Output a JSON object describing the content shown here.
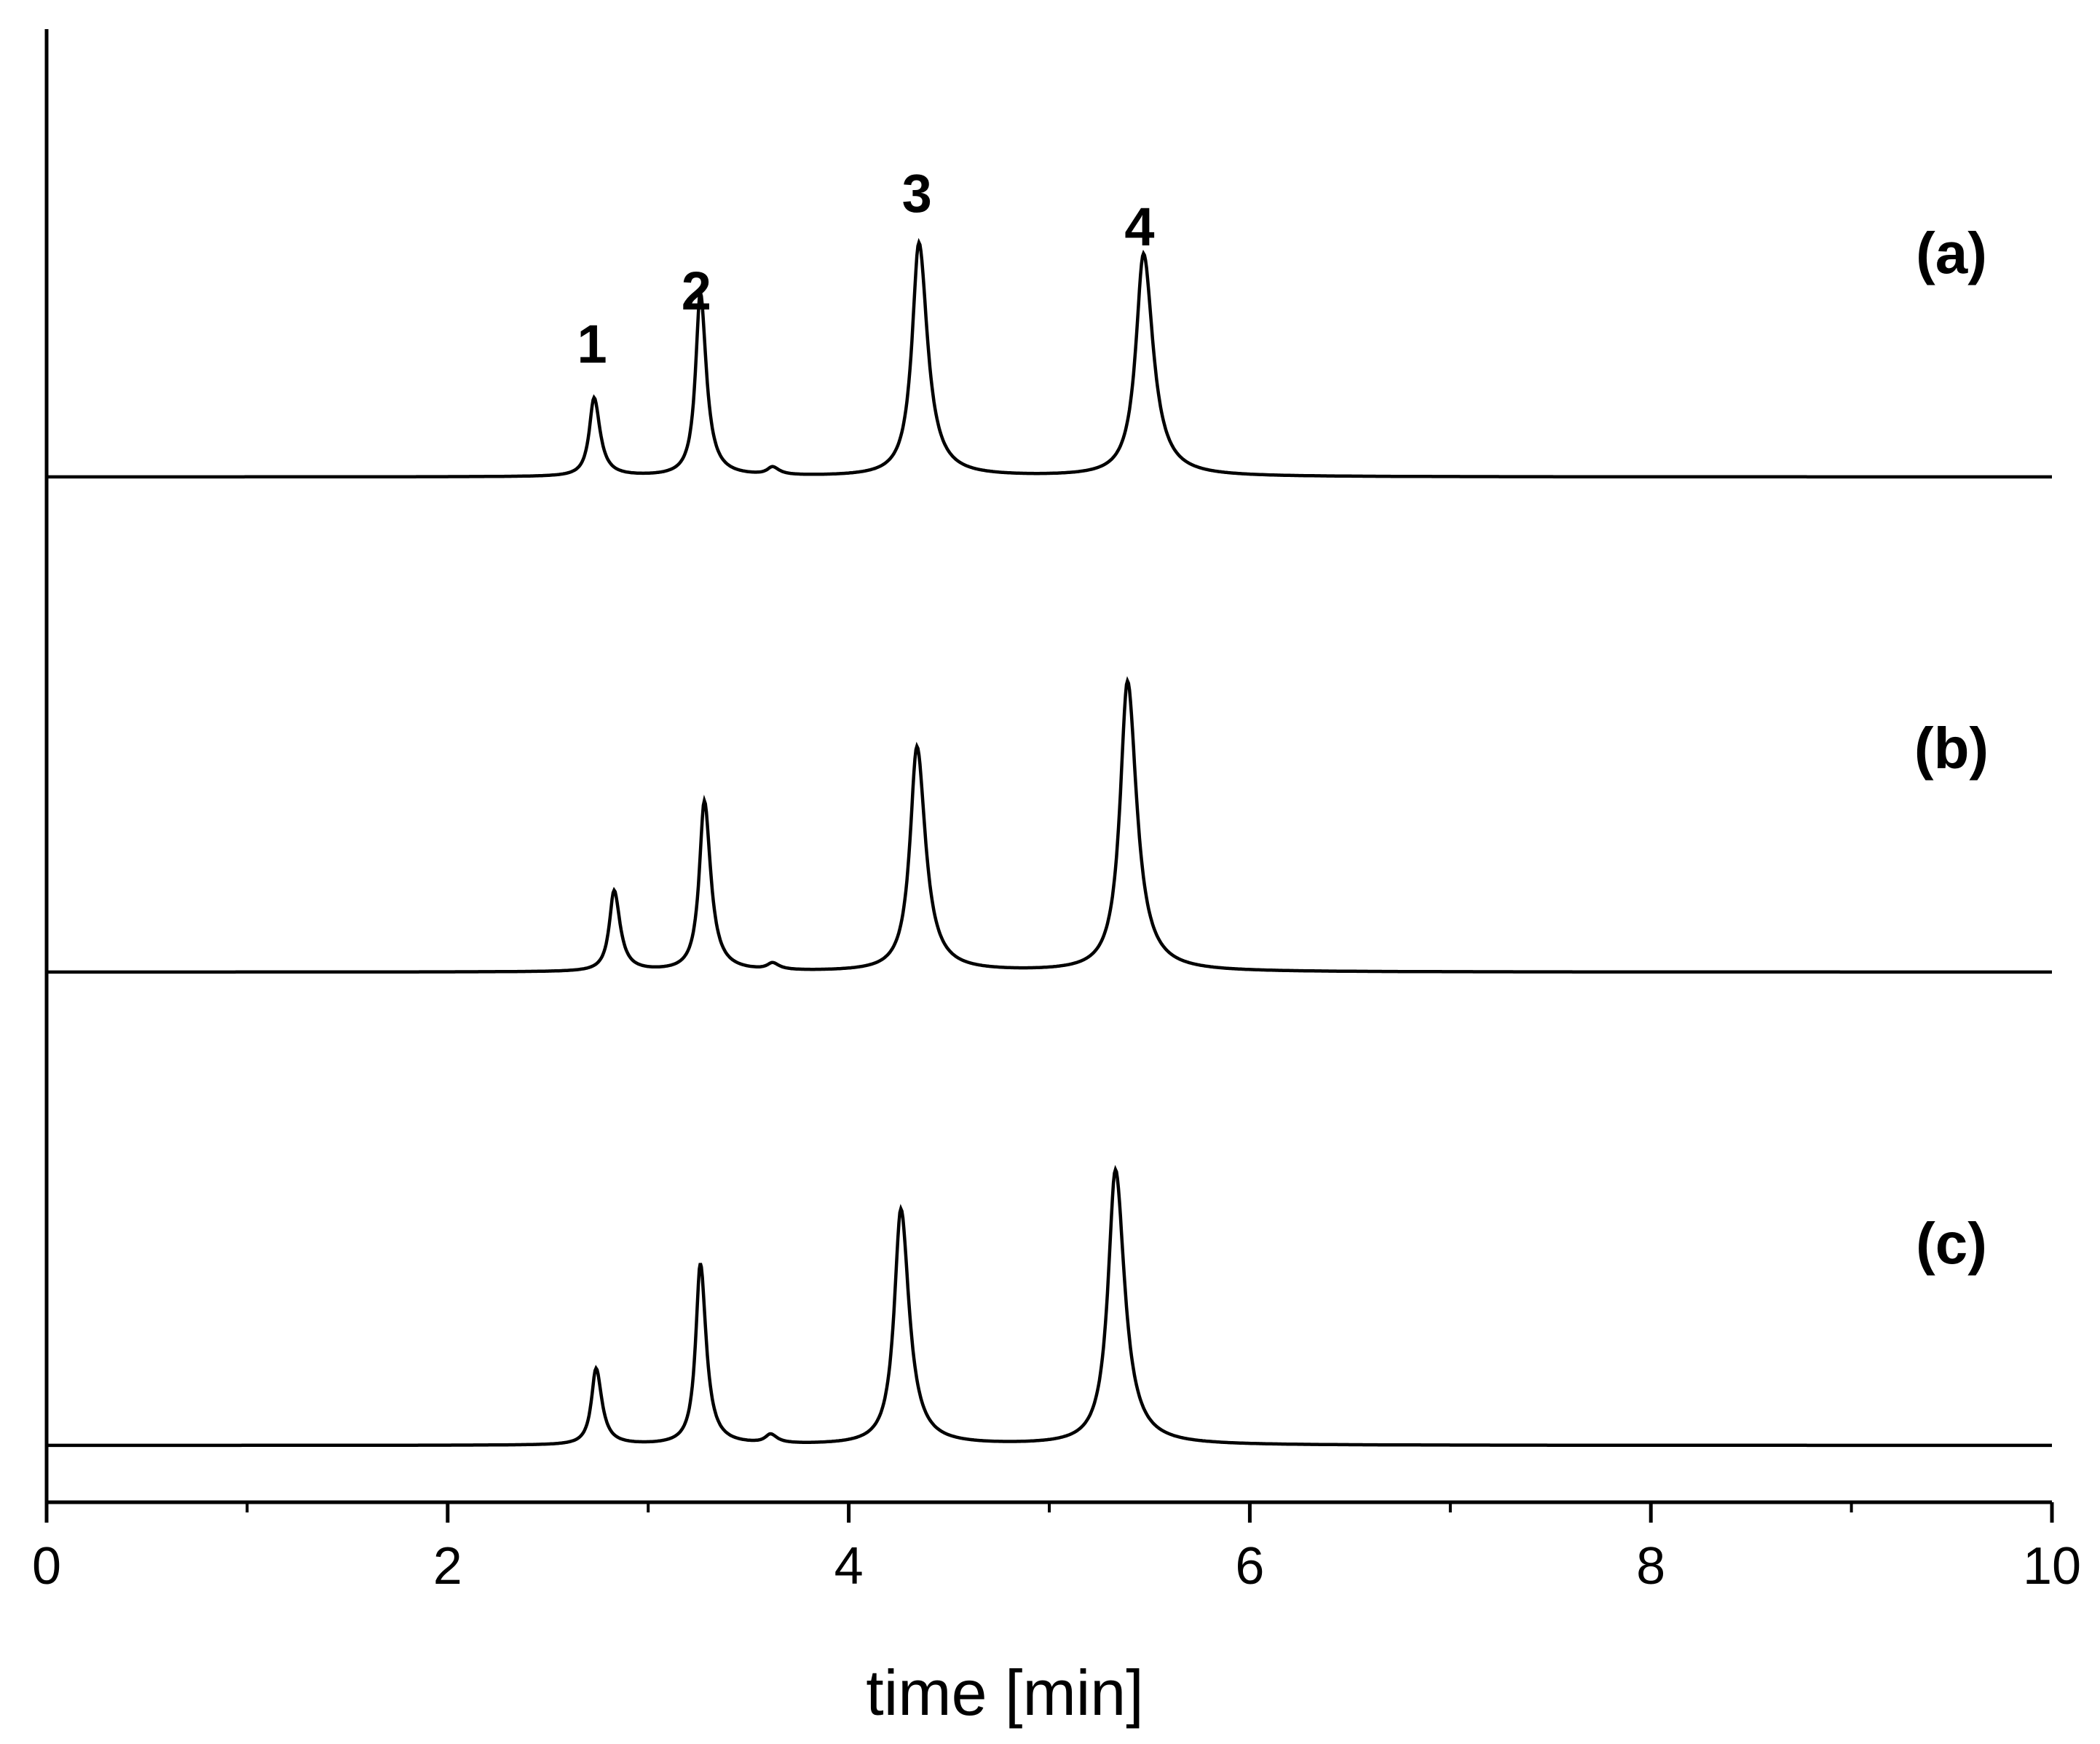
{
  "chart_data": {
    "type": "line",
    "title": "",
    "xlabel": "time [min]",
    "ylabel": "",
    "xlim": [
      0,
      10
    ],
    "x_ticks": [
      "0",
      "2",
      "4",
      "6",
      "8",
      "10"
    ],
    "x_minor_step": 1,
    "grid": false,
    "legend": "none",
    "line_color": "#000000",
    "peak_labels": [
      {
        "text": "1",
        "x": 2.72
      },
      {
        "text": "2",
        "x": 3.24
      },
      {
        "text": "3",
        "x": 4.34
      },
      {
        "text": "4",
        "x": 5.45
      }
    ],
    "series": [
      {
        "name": "(a)",
        "baseline": 0,
        "peaks": [
          {
            "x": 2.73,
            "h": 0.36,
            "w": 0.036
          },
          {
            "x": 3.26,
            "h": 0.84,
            "w": 0.036
          },
          {
            "x": 3.62,
            "h": 0.035,
            "w": 0.04
          },
          {
            "x": 4.35,
            "h": 1.07,
            "w": 0.052
          },
          {
            "x": 5.47,
            "h": 1.02,
            "w": 0.058
          }
        ]
      },
      {
        "name": "(b)",
        "baseline": 0,
        "peaks": [
          {
            "x": 2.83,
            "h": 0.37,
            "w": 0.036
          },
          {
            "x": 3.28,
            "h": 0.78,
            "w": 0.038
          },
          {
            "x": 3.62,
            "h": 0.03,
            "w": 0.04
          },
          {
            "x": 4.34,
            "h": 1.03,
            "w": 0.052
          },
          {
            "x": 5.39,
            "h": 1.33,
            "w": 0.056
          }
        ]
      },
      {
        "name": "(c)",
        "baseline": 0,
        "peaks": [
          {
            "x": 2.74,
            "h": 0.35,
            "w": 0.035
          },
          {
            "x": 3.26,
            "h": 0.83,
            "w": 0.035
          },
          {
            "x": 3.61,
            "h": 0.04,
            "w": 0.04
          },
          {
            "x": 4.26,
            "h": 1.08,
            "w": 0.05
          },
          {
            "x": 5.33,
            "h": 1.26,
            "w": 0.056
          }
        ]
      }
    ]
  }
}
